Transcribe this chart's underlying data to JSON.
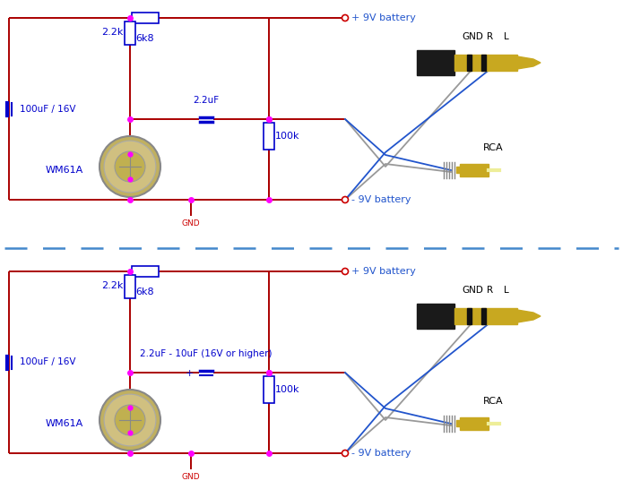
{
  "bg_color": "#ffffff",
  "wire_color": "#aa0000",
  "resistor_color": "#0000cc",
  "dot_color": "#ff00ff",
  "text_color": "#0000cc",
  "wire_blue": "#2255cc",
  "wire_gray": "#999999",
  "dash_color": "#4488cc",
  "gnd_color": "#cc0000",
  "label_6k8": "6k8",
  "label_22k": "2.2k",
  "label_100uF": "100uF / 16V",
  "label_22uF_1": "2.2uF",
  "label_22uF_2": "2.2uF - 10uF (16V or higher)",
  "label_100k": "100k",
  "label_wm61a": "WM61A",
  "label_9v_pos": "+ 9V battery",
  "label_9v_neg": "- 9V battery",
  "label_gnd": "GND",
  "label_GND_plug": "GND",
  "label_R": "R",
  "label_L": "L",
  "label_RCA": "RCA"
}
